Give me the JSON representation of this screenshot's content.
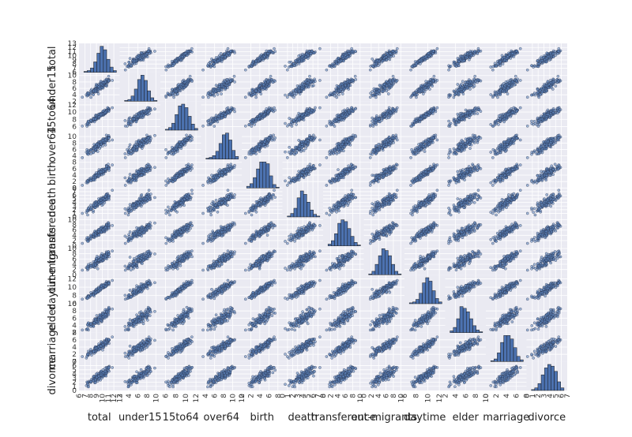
{
  "chart_data": {
    "type": "scatter",
    "subtype": "scatter-matrix",
    "title": "",
    "variables": [
      "total",
      "under15",
      "15to64",
      "over64",
      "birth",
      "death",
      "transference",
      "out-migrants",
      "daytime",
      "elder",
      "marriage",
      "divorce"
    ],
    "variable_labels": [
      "total",
      "under15",
      "15to64",
      "over64",
      "birth",
      "death",
      "transference",
      "out-migrants",
      "daytime",
      "elder",
      "marriage",
      "divorce"
    ],
    "ranges": [
      [
        6,
        13
      ],
      [
        2,
        11
      ],
      [
        5,
        13
      ],
      [
        3,
        12
      ],
      [
        0,
        9
      ],
      [
        0,
        8
      ],
      [
        0,
        11
      ],
      [
        0,
        11
      ],
      [
        6,
        13
      ],
      [
        2,
        10
      ],
      [
        0,
        8
      ],
      [
        0,
        7
      ]
    ],
    "y_ticks": [
      [
        6,
        7,
        8,
        9,
        10,
        11,
        12,
        13
      ],
      [
        2,
        4,
        6,
        8,
        10
      ],
      [
        6,
        8,
        10,
        12
      ],
      [
        4,
        6,
        8,
        10
      ],
      [
        0,
        2,
        4,
        6,
        8
      ],
      [
        0,
        1,
        2,
        3,
        4,
        5,
        6,
        7,
        8
      ],
      [
        0,
        2,
        4,
        6,
        8,
        10
      ],
      [
        0,
        2,
        4,
        6,
        8,
        10
      ],
      [
        6,
        8,
        10,
        12
      ],
      [
        2,
        4,
        6,
        8,
        10
      ],
      [
        0,
        2,
        4,
        6,
        8
      ],
      [
        0,
        1,
        2,
        3,
        4,
        5,
        6,
        7
      ]
    ],
    "x_ticks": [
      [
        6,
        7,
        8,
        9,
        10,
        11,
        12,
        13
      ],
      [
        2,
        4,
        6,
        8,
        10
      ],
      [
        6,
        8,
        10,
        12
      ],
      [
        4,
        6,
        8,
        10,
        12
      ],
      [
        0,
        2,
        4,
        6,
        8
      ],
      [
        0,
        1,
        2,
        3,
        4,
        5,
        6,
        7,
        8
      ],
      [
        0,
        2,
        4,
        6,
        8,
        10
      ],
      [
        0,
        2,
        4,
        6,
        8,
        10
      ],
      [
        6,
        8,
        10,
        12
      ],
      [
        2,
        4,
        6,
        8,
        10
      ],
      [
        0,
        2,
        4,
        6,
        8
      ],
      [
        0,
        1,
        2,
        3,
        4,
        5,
        6,
        7
      ]
    ],
    "histograms": [
      [
        1,
        2,
        5,
        12,
        22,
        30,
        26,
        15,
        6,
        2
      ],
      [
        1,
        2,
        6,
        14,
        25,
        30,
        24,
        12,
        4,
        1
      ],
      [
        1,
        3,
        8,
        18,
        28,
        30,
        26,
        16,
        7,
        2
      ],
      [
        1,
        2,
        4,
        9,
        18,
        28,
        30,
        22,
        10,
        3
      ],
      [
        2,
        5,
        12,
        22,
        30,
        30,
        28,
        14,
        4,
        1
      ],
      [
        1,
        4,
        10,
        22,
        30,
        26,
        17,
        8,
        3,
        1
      ],
      [
        2,
        6,
        14,
        26,
        30,
        28,
        20,
        11,
        4,
        1
      ],
      [
        1,
        4,
        12,
        22,
        30,
        28,
        22,
        12,
        4,
        1
      ],
      [
        1,
        2,
        5,
        12,
        24,
        30,
        26,
        15,
        6,
        2
      ],
      [
        2,
        6,
        16,
        30,
        28,
        24,
        16,
        8,
        3,
        1
      ],
      [
        1,
        3,
        10,
        22,
        30,
        30,
        26,
        16,
        6,
        2
      ],
      [
        1,
        3,
        8,
        18,
        26,
        30,
        28,
        22,
        10,
        3
      ]
    ],
    "grid": true,
    "legend": "none",
    "colors": {
      "background": "#eaeaf2",
      "grid": "#ffffff",
      "hist_fill": "#4c72b0",
      "hist_edge": "#1a1a1a",
      "point_fill": "#5f86c0",
      "point_edge": "#2a3550"
    }
  }
}
